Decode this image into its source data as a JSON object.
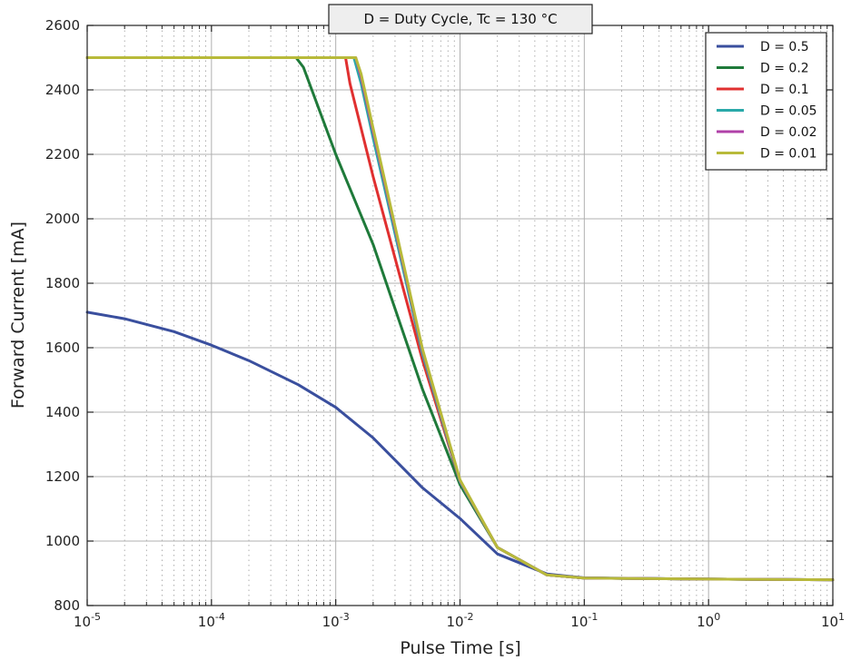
{
  "chart_data": {
    "type": "line",
    "title": "D = Duty Cycle,   Tc = 130 °C",
    "xlabel": "Pulse Time [s]",
    "ylabel": "Forward Current [mA]",
    "xscale": "log",
    "xlim": [
      1e-05,
      10
    ],
    "ylim": [
      800,
      2600
    ],
    "x_ticks": [
      {
        "base": "10",
        "exp": "-5"
      },
      {
        "base": "10",
        "exp": "-4"
      },
      {
        "base": "10",
        "exp": "-3"
      },
      {
        "base": "10",
        "exp": "-2"
      },
      {
        "base": "10",
        "exp": "-1"
      },
      {
        "base": "10",
        "exp": "0"
      },
      {
        "base": "10",
        "exp": "1"
      }
    ],
    "y_ticks": [
      "800",
      "1000",
      "1200",
      "1400",
      "1600",
      "1800",
      "2000",
      "2200",
      "2400",
      "2600"
    ],
    "grid": true,
    "legend_position": "top-right",
    "series": [
      {
        "name": "D = 0.5",
        "color": "#3a4f9e",
        "x": [
          1e-05,
          2e-05,
          5e-05,
          0.0001,
          0.0002,
          0.0005,
          0.001,
          0.002,
          0.005,
          0.01,
          0.02,
          0.05,
          0.1,
          1,
          10
        ],
        "y": [
          1710,
          1690,
          1650,
          1608,
          1560,
          1485,
          1415,
          1320,
          1165,
          1070,
          960,
          898,
          886,
          882,
          880
        ]
      },
      {
        "name": "D = 0.2",
        "color": "#1f7a3a",
        "x": [
          1e-05,
          0.00048,
          0.00055,
          0.001,
          0.002,
          0.005,
          0.01,
          0.02,
          0.05,
          0.1,
          1,
          10
        ],
        "y": [
          2500,
          2500,
          2470,
          2200,
          1920,
          1470,
          1175,
          980,
          895,
          885,
          882,
          880
        ]
      },
      {
        "name": "D = 0.1",
        "color": "#e03030",
        "x": [
          1e-05,
          0.0012,
          0.0013,
          0.002,
          0.005,
          0.01,
          0.02,
          0.05,
          0.1,
          1,
          10
        ],
        "y": [
          2500,
          2500,
          2420,
          2130,
          1560,
          1185,
          980,
          895,
          885,
          882,
          880
        ]
      },
      {
        "name": "D = 0.05",
        "color": "#2aa9a9",
        "x": [
          1e-05,
          0.0014,
          0.0016,
          0.002,
          0.005,
          0.01,
          0.02,
          0.05,
          0.1,
          1,
          10
        ],
        "y": [
          2500,
          2500,
          2420,
          2250,
          1580,
          1185,
          980,
          895,
          885,
          882,
          880
        ]
      },
      {
        "name": "D = 0.02",
        "color": "#b040a8",
        "x": [
          1e-05,
          0.00145,
          0.0016,
          0.002,
          0.005,
          0.01,
          0.02,
          0.05,
          0.1,
          1,
          10
        ],
        "y": [
          2500,
          2500,
          2440,
          2270,
          1590,
          1188,
          980,
          895,
          885,
          882,
          880
        ]
      },
      {
        "name": "D = 0.01",
        "color": "#b8ba3a",
        "x": [
          1e-05,
          0.00145,
          0.0016,
          0.002,
          0.005,
          0.01,
          0.02,
          0.05,
          0.1,
          1,
          10
        ],
        "y": [
          2500,
          2500,
          2450,
          2280,
          1595,
          1190,
          980,
          895,
          885,
          882,
          880
        ]
      }
    ]
  }
}
